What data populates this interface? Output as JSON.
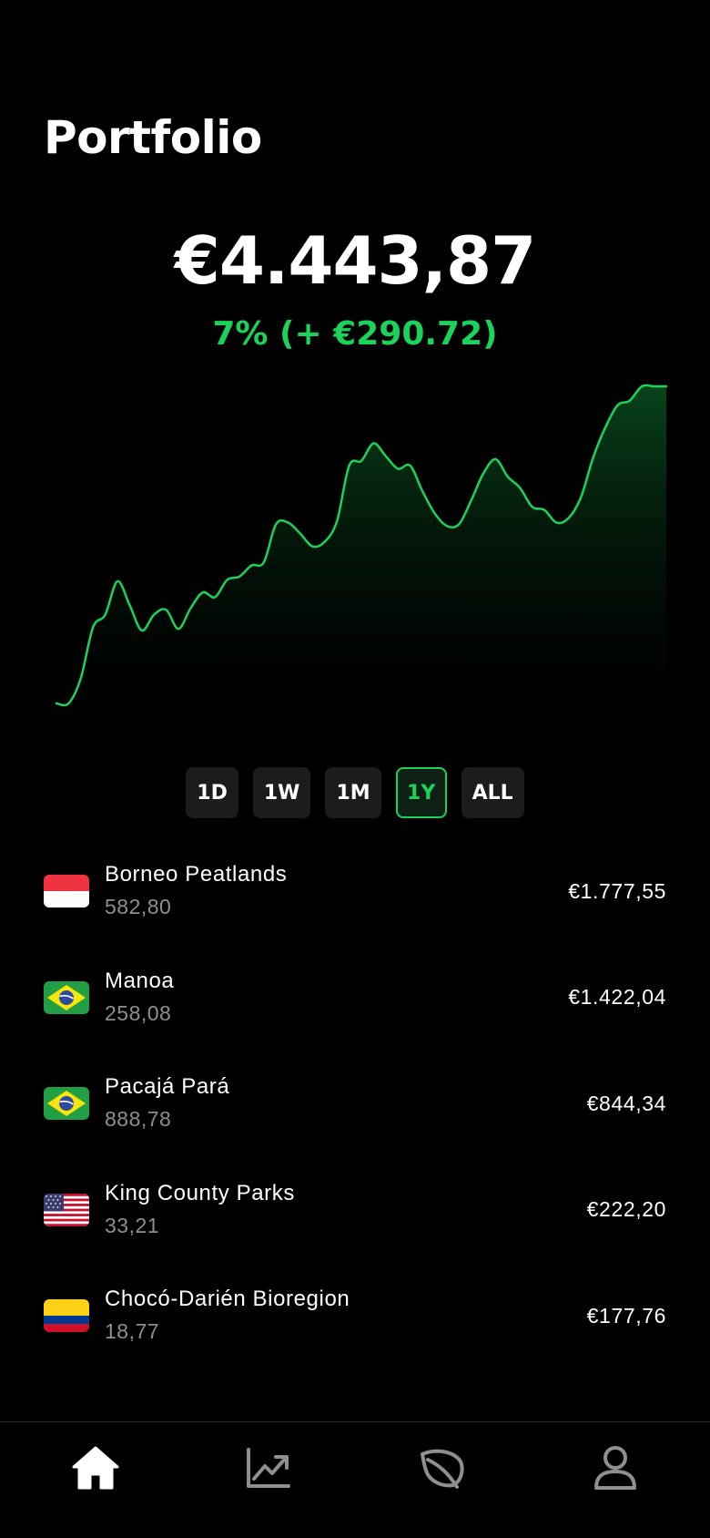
{
  "header": {
    "title": "Portfolio"
  },
  "summary": {
    "balance": "€4.443,87",
    "change": "7% (+ €290.72)"
  },
  "colors": {
    "accent": "#19d35a",
    "muted": "#8e8e93",
    "button_bg": "#1c1c1e"
  },
  "chart_data": {
    "type": "area",
    "title": "",
    "xlabel": "",
    "ylabel": "",
    "grid": false,
    "x": [
      0,
      1,
      2,
      3,
      4,
      5,
      6,
      7,
      8,
      9,
      10,
      11,
      12,
      13,
      14,
      15,
      16,
      17,
      18,
      19,
      20,
      21,
      22,
      23,
      24,
      25,
      26,
      27,
      28,
      29,
      30,
      31,
      32,
      33,
      34,
      35,
      36,
      37,
      38,
      39,
      40,
      41,
      42,
      43,
      44,
      45,
      46,
      47,
      48,
      49,
      50
    ],
    "series": [
      {
        "values": [
          0.0,
          0.0,
          8.0,
          24.0,
          28.0,
          38.5,
          31.0,
          23.0,
          28.0,
          29.5,
          23.5,
          30.0,
          35.0,
          33.5,
          39.0,
          40.0,
          43.5,
          44.5,
          56.5,
          57.0,
          53.5,
          49.5,
          51.0,
          57.5,
          75.0,
          76.5,
          82.0,
          78.0,
          74.0,
          75.0,
          67.0,
          60.0,
          56.0,
          56.5,
          64.0,
          72.5,
          77.0,
          71.5,
          68.0,
          62.0,
          61.0,
          57.0,
          58.5,
          65.0,
          77.5,
          87.0,
          94.0,
          95.5,
          100.0,
          100.0,
          100.0
        ]
      }
    ]
  },
  "ranges": [
    {
      "label": "1D",
      "active": false
    },
    {
      "label": "1W",
      "active": false
    },
    {
      "label": "1M",
      "active": false
    },
    {
      "label": "1Y",
      "active": true
    },
    {
      "label": "ALL",
      "active": false
    }
  ],
  "holdings": [
    {
      "name": "Borneo Peatlands",
      "qty": "582,80",
      "value": "€1.777,55",
      "flag": "indonesia-flag"
    },
    {
      "name": "Manoa",
      "qty": "258,08",
      "value": "€1.422,04",
      "flag": "brazil-flag"
    },
    {
      "name": "Pacajá Pará",
      "qty": "888,78",
      "value": "€844,34",
      "flag": "brazil-flag"
    },
    {
      "name": "King County Parks",
      "qty": "33,21",
      "value": "€222,20",
      "flag": "usa-flag"
    },
    {
      "name": "Chocó-Darién Bioregion",
      "qty": "18,77",
      "value": "€177,76",
      "flag": "colombia-flag"
    }
  ],
  "nav": [
    {
      "icon": "home-icon",
      "active": true
    },
    {
      "icon": "chart-icon",
      "active": false
    },
    {
      "icon": "leaf-icon",
      "active": false
    },
    {
      "icon": "user-icon",
      "active": false
    }
  ]
}
